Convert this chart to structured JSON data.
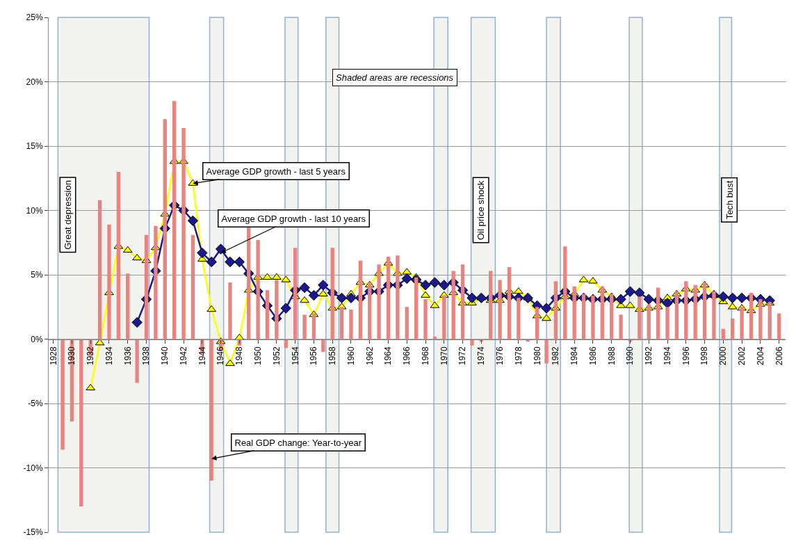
{
  "chart_data": {
    "type": "bar",
    "x": [
      1929,
      1930,
      1931,
      1932,
      1933,
      1934,
      1935,
      1936,
      1937,
      1938,
      1939,
      1940,
      1941,
      1942,
      1943,
      1944,
      1945,
      1946,
      1947,
      1948,
      1949,
      1950,
      1951,
      1952,
      1953,
      1954,
      1955,
      1956,
      1957,
      1958,
      1959,
      1960,
      1961,
      1962,
      1963,
      1964,
      1965,
      1966,
      1967,
      1968,
      1969,
      1970,
      1971,
      1972,
      1973,
      1974,
      1975,
      1976,
      1977,
      1978,
      1979,
      1980,
      1981,
      1982,
      1983,
      1984,
      1985,
      1986,
      1987,
      1988,
      1989,
      1990,
      1991,
      1992,
      1993,
      1994,
      1995,
      1996,
      1997,
      1998,
      1999,
      2000,
      2001,
      2002,
      2003,
      2004,
      2005,
      2006
    ],
    "series": [
      {
        "color": "#e8847f",
        "values": [
          -8.6,
          -6.4,
          -13.0,
          -1.3,
          10.8,
          8.9,
          13.0,
          5.1,
          -3.4,
          8.1,
          8.8,
          17.1,
          18.5,
          16.4,
          8.1,
          -1.1,
          -11.0,
          -0.9,
          4.4,
          -0.5,
          8.7,
          7.7,
          3.8,
          4.6,
          -0.7,
          7.1,
          1.9,
          2.0,
          -1.0,
          7.1,
          2.5,
          2.3,
          6.1,
          4.4,
          5.8,
          6.4,
          6.5,
          2.5,
          4.8,
          3.1,
          0.2,
          3.4,
          5.3,
          5.8,
          -0.5,
          -0.2,
          5.3,
          4.6,
          5.6,
          3.2,
          -0.2,
          2.5,
          -1.9,
          4.5,
          7.2,
          4.1,
          3.5,
          3.4,
          4.1,
          3.5,
          1.9,
          -0.2,
          3.3,
          2.7,
          4.0,
          2.5,
          3.7,
          4.5,
          4.2,
          4.4,
          3.7,
          0.8,
          1.6,
          2.5,
          3.6,
          3.1,
          2.9,
          2.0
        ]
      },
      {
        "type": "line",
        "color": "#ffff00",
        "marker": "triangle",
        "x": [
          1932,
          1933,
          1934,
          1935,
          1936,
          1937,
          1938,
          1939,
          1940,
          1941,
          1942,
          1943,
          1944,
          1945,
          1946,
          1947,
          1948,
          1949,
          1950,
          1951,
          1952,
          1953,
          1954,
          1955,
          1956,
          1957,
          1958,
          1959,
          1960,
          1961,
          1962,
          1963,
          1964,
          1965,
          1966,
          1967,
          1968,
          1969,
          1970,
          1971,
          1972,
          1973,
          1974,
          1975,
          1976,
          1977,
          1978,
          1979,
          1980,
          1981,
          1982,
          1983,
          1984,
          1985,
          1986,
          1987,
          1988,
          1989,
          1990,
          1991,
          1992,
          1993,
          1994,
          1995,
          1996,
          1997,
          1998,
          1999,
          2000,
          2001,
          2002,
          2003,
          2004,
          2005
        ],
        "values": [
          -3.8,
          -0.3,
          3.6,
          7.2,
          6.9,
          6.3,
          6.1,
          7.1,
          9.7,
          13.8,
          13.8,
          12.1,
          6.2,
          2.3,
          -0.2,
          -1.9,
          0.1,
          3.8,
          4.8,
          4.8,
          4.8,
          4.6,
          3.3,
          3.0,
          1.9,
          3.5,
          2.4,
          2.5,
          3.5,
          4.4,
          4.2,
          5.1,
          5.9,
          5.1,
          5.2,
          4.8,
          3.4,
          2.6,
          3.4,
          3.6,
          2.8,
          2.8,
          3.2,
          3.0,
          3.0,
          3.7,
          3.7,
          3.2,
          1.8,
          1.6,
          2.4,
          3.3,
          3.5,
          4.6,
          4.5,
          3.8,
          3.3,
          2.6,
          2.6,
          2.3,
          2.4,
          2.5,
          3.2,
          3.5,
          3.9,
          3.8,
          4.2,
          3.4,
          2.9,
          2.5,
          2.4,
          2.2,
          2.7,
          2.8
        ]
      },
      {
        "type": "line",
        "color": "#1a1a8c",
        "marker": "diamond",
        "x": [
          1937,
          1938,
          1939,
          1940,
          1941,
          1942,
          1943,
          1944,
          1945,
          1946,
          1947,
          1948,
          1949,
          1950,
          1951,
          1952,
          1953,
          1954,
          1955,
          1956,
          1957,
          1958,
          1959,
          1960,
          1961,
          1962,
          1963,
          1964,
          1965,
          1966,
          1967,
          1968,
          1969,
          1970,
          1971,
          1972,
          1973,
          1974,
          1975,
          1976,
          1977,
          1978,
          1979,
          1980,
          1981,
          1982,
          1983,
          1984,
          1985,
          1986,
          1987,
          1988,
          1989,
          1990,
          1991,
          1992,
          1993,
          1994,
          1995,
          1996,
          1997,
          1998,
          1999,
          2000,
          2001,
          2002,
          2003,
          2004,
          2005
        ],
        "values": [
          1.3,
          3.1,
          5.3,
          8.6,
          10.4,
          10.0,
          9.2,
          6.7,
          6.0,
          7.0,
          6.0,
          6.0,
          5.1,
          3.7,
          2.6,
          1.6,
          2.4,
          3.8,
          4.0,
          3.4,
          4.2,
          3.6,
          3.2,
          3.2,
          3.2,
          3.7,
          3.7,
          4.2,
          4.2,
          4.7,
          4.6,
          4.2,
          4.4,
          4.2,
          4.4,
          3.8,
          3.2,
          3.2,
          3.2,
          3.4,
          3.3,
          3.2,
          3.2,
          2.6,
          2.4,
          3.2,
          3.7,
          3.2,
          3.2,
          3.1,
          3.1,
          3.1,
          3.1,
          3.7,
          3.6,
          3.1,
          3.0,
          2.8,
          3.0,
          3.0,
          3.1,
          3.3,
          3.4,
          3.3,
          3.2,
          3.2,
          3.2,
          3.1,
          3.0
        ]
      }
    ],
    "xlim": [
      1927.5,
      2006.7
    ],
    "xticks": [
      1928,
      1930,
      1932,
      1934,
      1936,
      1938,
      1940,
      1942,
      1944,
      1946,
      1948,
      1950,
      1952,
      1954,
      1956,
      1958,
      1960,
      1962,
      1964,
      1966,
      1968,
      1970,
      1972,
      1974,
      1976,
      1978,
      1980,
      1982,
      1984,
      1986,
      1988,
      1990,
      1992,
      1994,
      1996,
      1998,
      2000,
      2002,
      2004,
      2006
    ],
    "ylim": [
      -15,
      25
    ],
    "yticks": [
      {
        "value": -15,
        "label": "-15%"
      },
      {
        "value": -10,
        "label": "-10%"
      },
      {
        "value": -5,
        "label": "-5%"
      },
      {
        "value": 0,
        "label": "0%"
      },
      {
        "value": 5,
        "label": "5%"
      },
      {
        "value": 10,
        "label": "10%"
      },
      {
        "value": 15,
        "label": "15%"
      },
      {
        "value": 20,
        "label": "20%"
      },
      {
        "value": 25,
        "label": "25%"
      }
    ],
    "grid": "y",
    "bands": [
      {
        "axis": "x",
        "from": 1928.5,
        "to": 1938.3,
        "label": "Great depression",
        "color": "#f2f2ee"
      },
      {
        "axis": "x",
        "from": 1944.8,
        "to": 1946.3,
        "color": "#f2f2ee"
      },
      {
        "axis": "x",
        "from": 1952.9,
        "to": 1954.3,
        "color": "#f2f2ee"
      },
      {
        "axis": "x",
        "from": 1957.3,
        "to": 1958.7,
        "color": "#f2f2ee"
      },
      {
        "axis": "x",
        "from": 1968.9,
        "to": 1970.4,
        "color": "#f2f2ee"
      },
      {
        "axis": "x",
        "from": 1972.9,
        "to": 1975.5,
        "label": "Oil price shock",
        "color": "#f2f2ee"
      },
      {
        "axis": "x",
        "from": 1981.0,
        "to": 1982.5,
        "color": "#f2f2ee"
      },
      {
        "axis": "x",
        "from": 1989.9,
        "to": 1991.3,
        "color": "#f2f2ee"
      },
      {
        "axis": "x",
        "from": 1999.6,
        "to": 2000.9,
        "label": "Tech bust",
        "color": "#f2f2ee"
      }
    ],
    "annotations": [
      "Shaded areas are recessions",
      {
        "text": "Average GDP growth - last 5 years",
        "x": 1943,
        "y": 12.1
      },
      {
        "text": "Average GDP growth - last 10 years",
        "x": 1946,
        "y": 6.7
      },
      {
        "text": "Real GDP change: Year-to-year",
        "x": 1945,
        "y": -9.3
      }
    ]
  }
}
